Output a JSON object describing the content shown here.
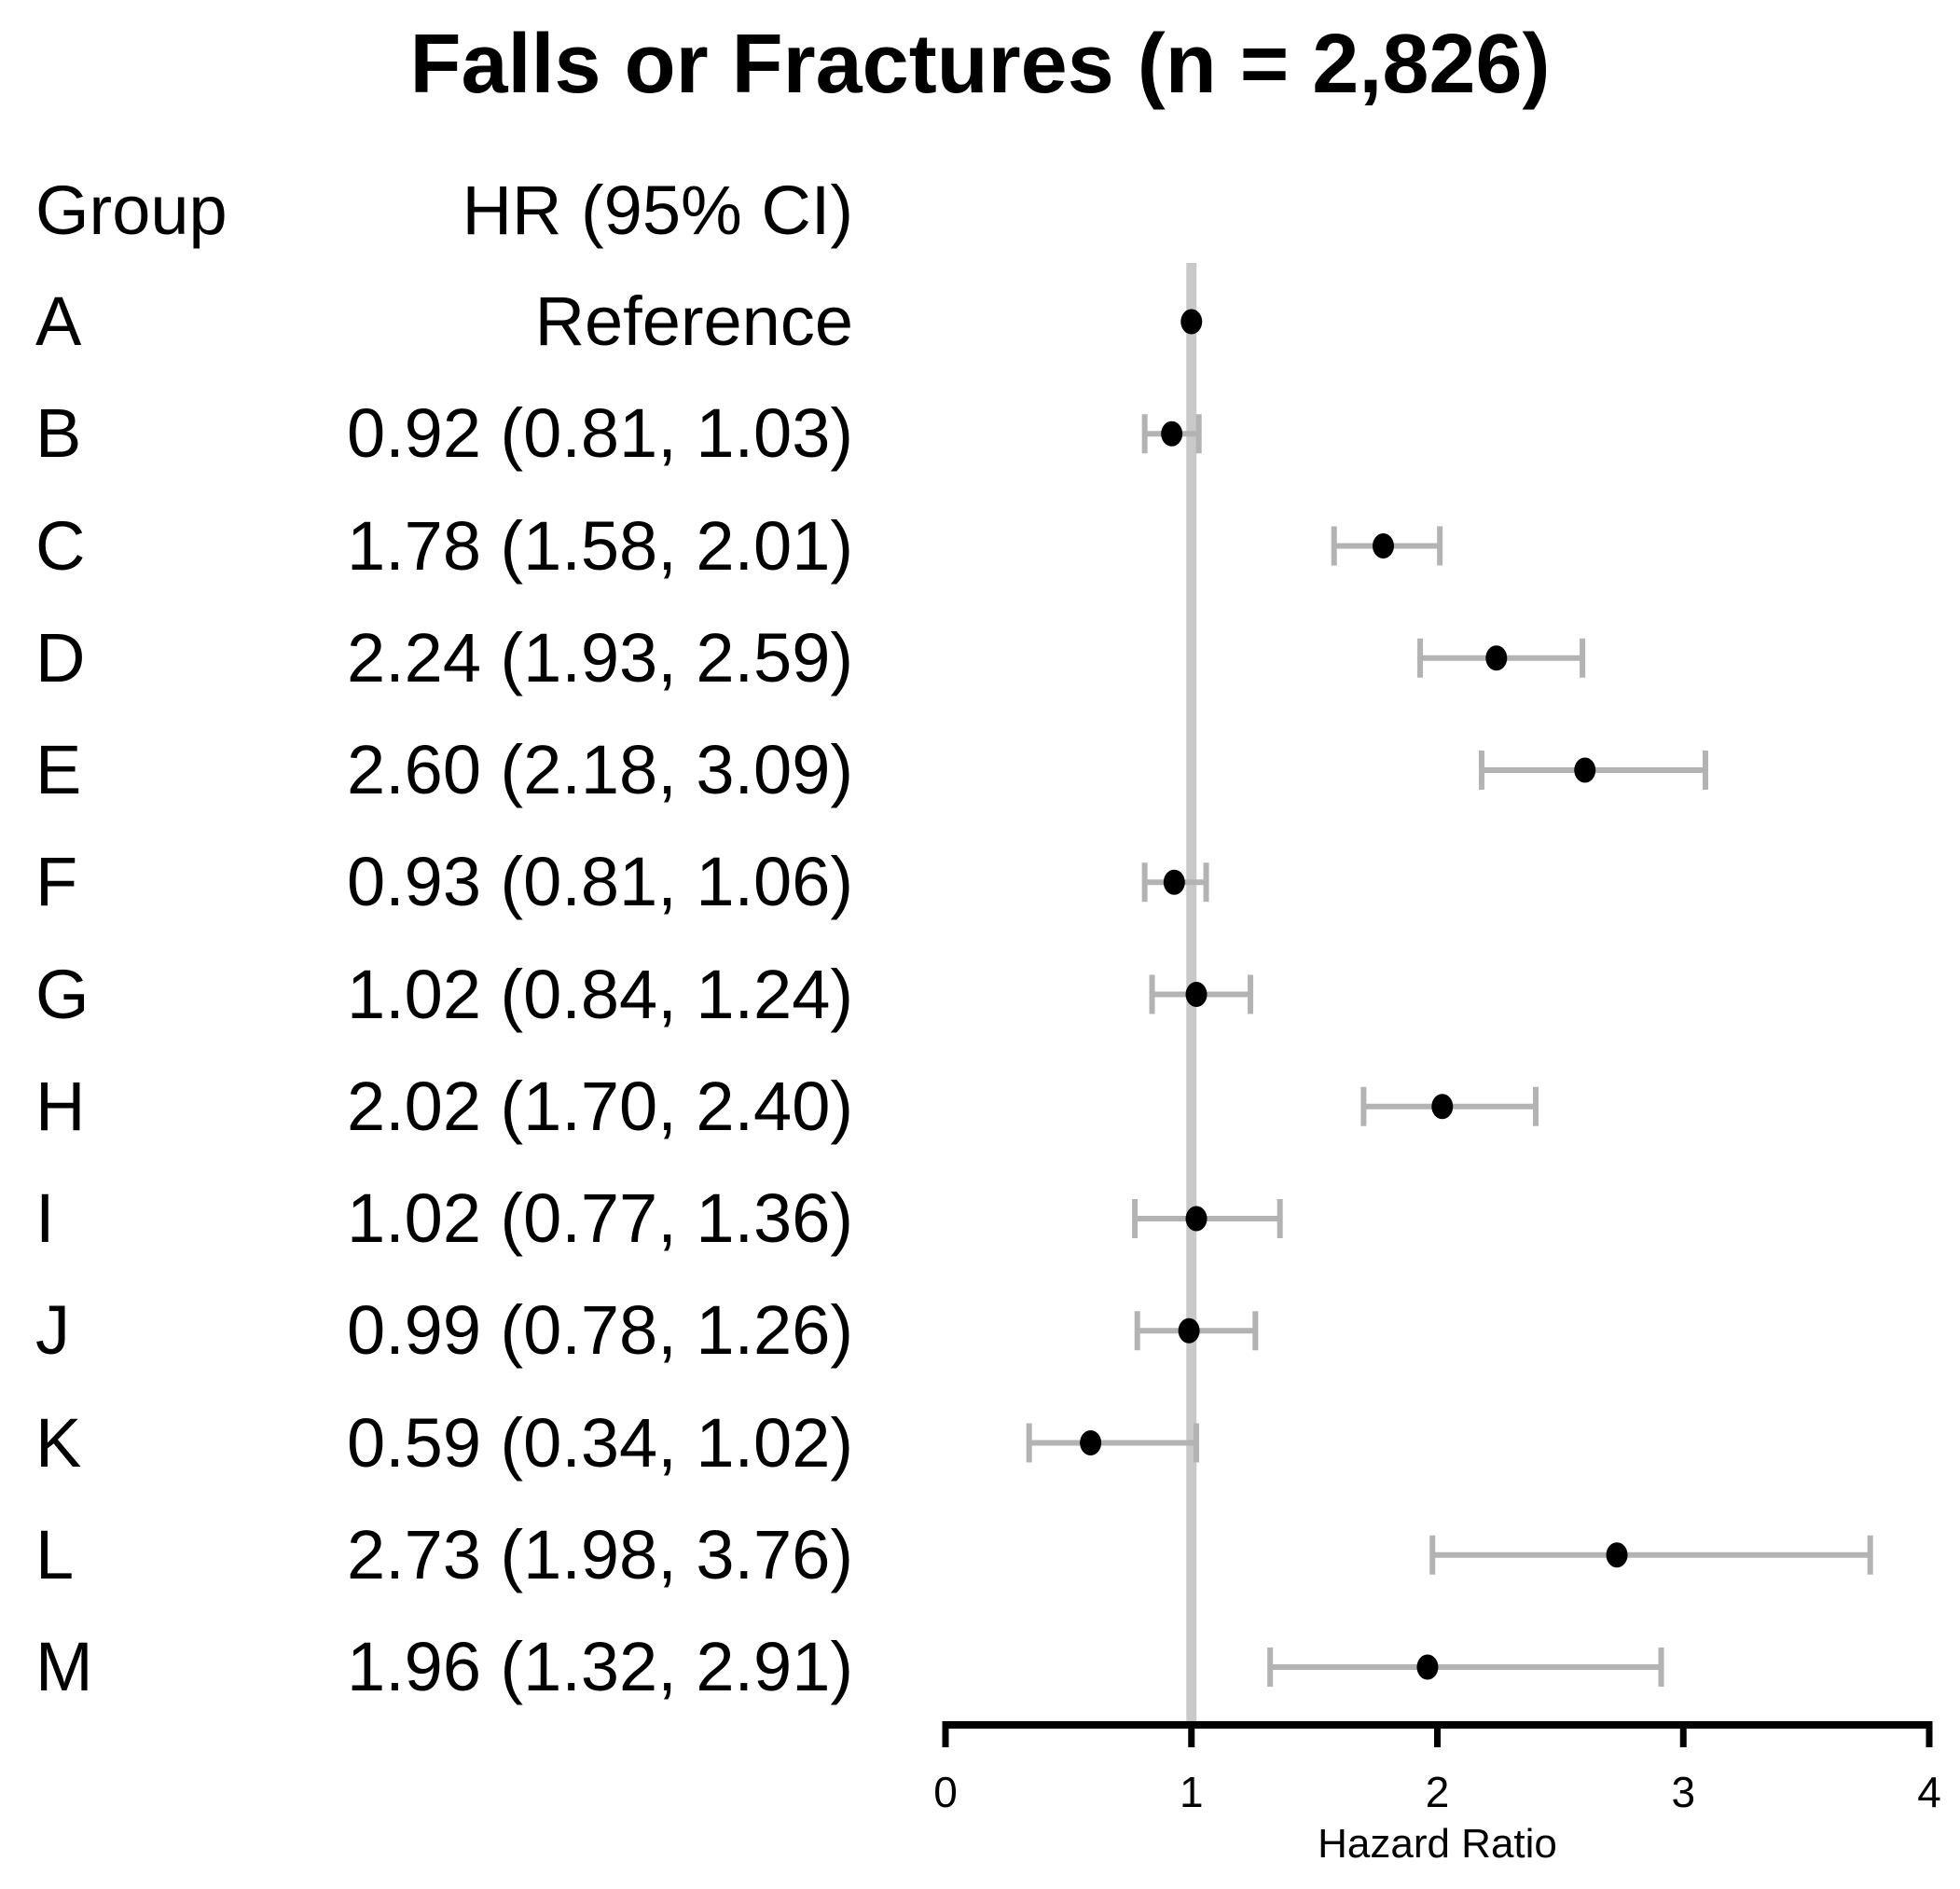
{
  "chart_data": {
    "type": "scatter",
    "subtype": "forest-plot",
    "title": "Falls or Fractures (n = 2,826)",
    "columns": [
      "Group",
      "HR (95% CI)"
    ],
    "xlabel": "Hazard Ratio",
    "xlim": [
      0,
      4
    ],
    "xticks": [
      0,
      1,
      2,
      3,
      4
    ],
    "reference_line_x": 1,
    "grid": false,
    "legend": "none",
    "rows": [
      {
        "group": "A",
        "label": "Reference",
        "hr": 1.0,
        "lo": null,
        "hi": null
      },
      {
        "group": "B",
        "label": "0.92 (0.81, 1.03)",
        "hr": 0.92,
        "lo": 0.81,
        "hi": 1.03
      },
      {
        "group": "C",
        "label": "1.78 (1.58, 2.01)",
        "hr": 1.78,
        "lo": 1.58,
        "hi": 2.01
      },
      {
        "group": "D",
        "label": "2.24 (1.93, 2.59)",
        "hr": 2.24,
        "lo": 1.93,
        "hi": 2.59
      },
      {
        "group": "E",
        "label": "2.60 (2.18, 3.09)",
        "hr": 2.6,
        "lo": 2.18,
        "hi": 3.09
      },
      {
        "group": "F",
        "label": "0.93 (0.81, 1.06)",
        "hr": 0.93,
        "lo": 0.81,
        "hi": 1.06
      },
      {
        "group": "G",
        "label": "1.02 (0.84, 1.24)",
        "hr": 1.02,
        "lo": 0.84,
        "hi": 1.24
      },
      {
        "group": "H",
        "label": "2.02 (1.70, 2.40)",
        "hr": 2.02,
        "lo": 1.7,
        "hi": 2.4
      },
      {
        "group": "I",
        "label": "1.02 (0.77, 1.36)",
        "hr": 1.02,
        "lo": 0.77,
        "hi": 1.36
      },
      {
        "group": "J",
        "label": "0.99 (0.78, 1.26)",
        "hr": 0.99,
        "lo": 0.78,
        "hi": 1.26
      },
      {
        "group": "K",
        "label": "0.59 (0.34, 1.02)",
        "hr": 0.59,
        "lo": 0.34,
        "hi": 1.02
      },
      {
        "group": "L",
        "label": "2.73 (1.98, 3.76)",
        "hr": 2.73,
        "lo": 1.98,
        "hi": 3.76
      },
      {
        "group": "M",
        "label": "1.96 (1.32, 2.91)",
        "hr": 1.96,
        "lo": 1.32,
        "hi": 2.91
      }
    ],
    "colors": {
      "marker": "#000000",
      "ci_bar": "#b3b3b3",
      "reference_line": "#c9c9c9",
      "axis": "#000000",
      "text": "#000000",
      "background": "#ffffff"
    }
  }
}
